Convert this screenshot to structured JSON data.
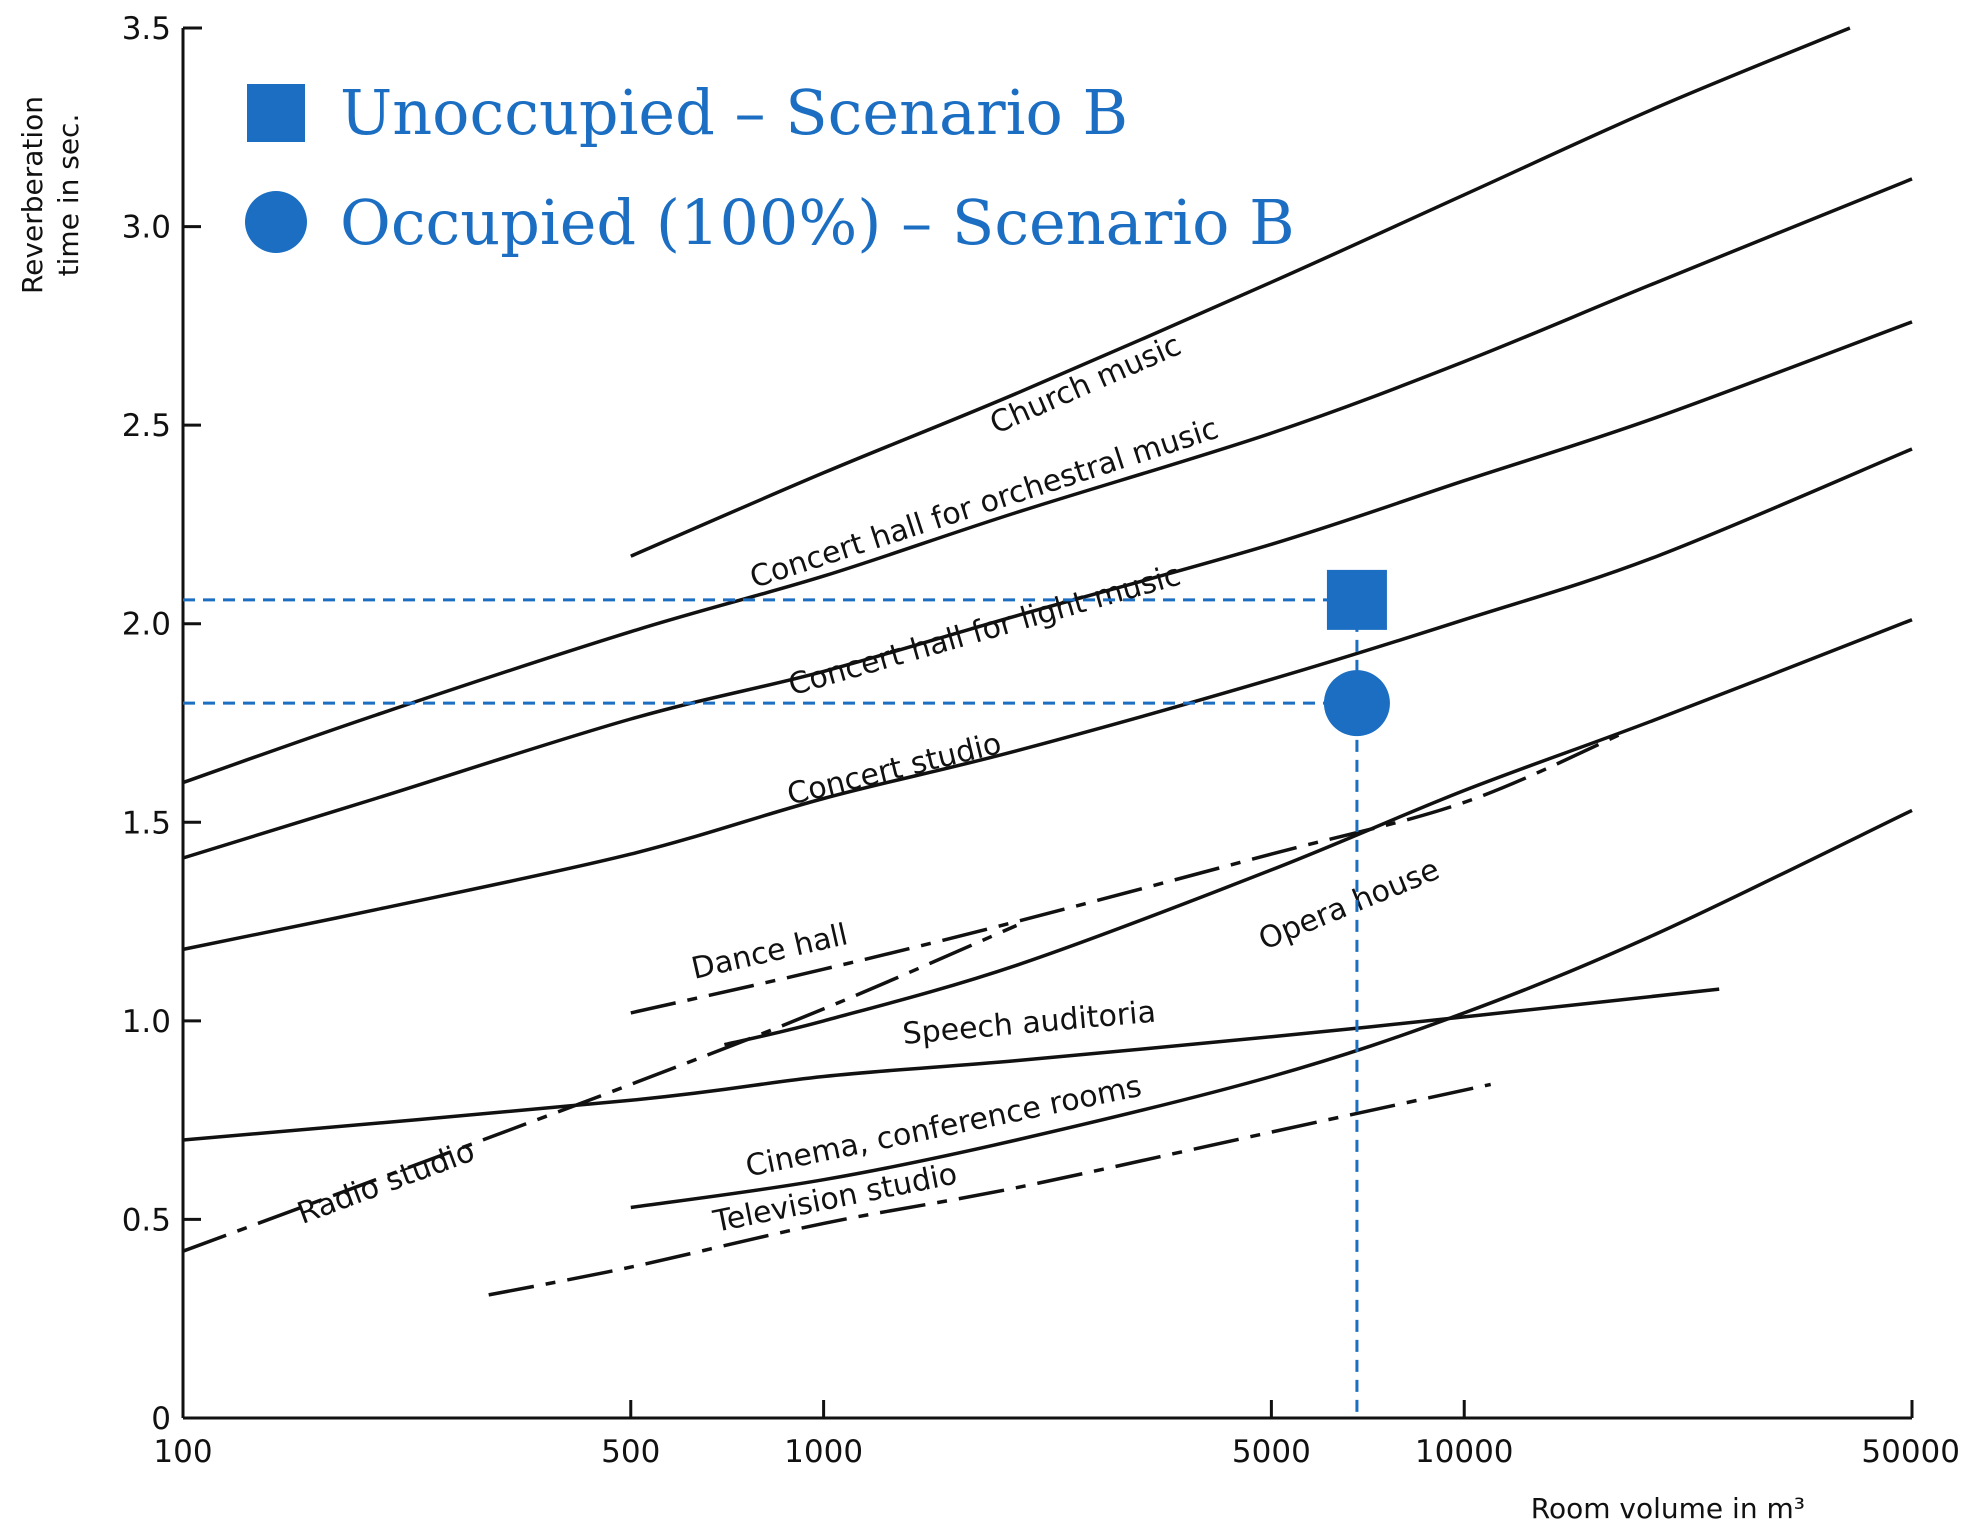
{
  "chart_data": {
    "type": "line",
    "xlabel": "Room volume in m³",
    "ylabel_line1": "Reverberation",
    "ylabel_line2": "time in sec.",
    "x_scale": "log",
    "xlim": [
      100,
      50000
    ],
    "ylim": [
      0,
      3.5
    ],
    "x_ticks": [
      {
        "value": 100,
        "label": "100"
      },
      {
        "value": 500,
        "label": "500"
      },
      {
        "value": 1000,
        "label": "1000"
      },
      {
        "value": 5000,
        "label": "5000"
      },
      {
        "value": 10000,
        "label": "10000"
      },
      {
        "value": 50000,
        "label": "50000"
      }
    ],
    "y_ticks": [
      {
        "value": 0,
        "label": "0"
      },
      {
        "value": 0.5,
        "label": "0.5"
      },
      {
        "value": 1.0,
        "label": "1.0"
      },
      {
        "value": 1.5,
        "label": "1.5"
      },
      {
        "value": 2.0,
        "label": "2.0"
      },
      {
        "value": 2.5,
        "label": "2.5"
      },
      {
        "value": 3.0,
        "label": "3.0"
      },
      {
        "value": 3.5,
        "label": "3.5"
      }
    ],
    "series": [
      {
        "name": "Church music",
        "style": "solid",
        "label_at": [
          2600,
          2.58
        ],
        "x": [
          500,
          1000,
          2000,
          5000,
          10000,
          20000,
          40000
        ],
        "y": [
          2.17,
          2.38,
          2.58,
          2.86,
          3.08,
          3.3,
          3.5
        ]
      },
      {
        "name": "Concert hall for orchestral music",
        "style": "solid",
        "label_at": [
          1800,
          2.28
        ],
        "x": [
          100,
          200,
          500,
          1000,
          2000,
          5000,
          10000,
          20000,
          50000
        ],
        "y": [
          1.6,
          1.77,
          1.98,
          2.12,
          2.28,
          2.48,
          2.66,
          2.86,
          3.12
        ]
      },
      {
        "name": "Concert hall for light music",
        "style": "solid",
        "label_at": [
          1800,
          1.96
        ],
        "x": [
          100,
          200,
          500,
          1000,
          2000,
          5000,
          10000,
          20000,
          50000
        ],
        "y": [
          1.41,
          1.56,
          1.76,
          1.88,
          2.02,
          2.2,
          2.36,
          2.52,
          2.76
        ]
      },
      {
        "name": "Concert studio",
        "style": "solid",
        "label_at": [
          1300,
          1.61
        ],
        "x": [
          100,
          200,
          500,
          1000,
          2000,
          5000,
          10000,
          20000,
          50000
        ],
        "y": [
          1.18,
          1.28,
          1.42,
          1.56,
          1.68,
          1.86,
          2.01,
          2.17,
          2.44
        ]
      },
      {
        "name": "Opera house",
        "style": "solid",
        "label_at": [
          6700,
          1.27
        ],
        "x": [
          700,
          1000,
          2000,
          5000,
          10000,
          20000,
          50000
        ],
        "y": [
          0.94,
          1.0,
          1.14,
          1.38,
          1.58,
          1.76,
          2.01
        ]
      },
      {
        "name": "Dance hall",
        "style": "dashdot",
        "label_at": [
          830,
          1.15
        ],
        "x": [
          500,
          1000,
          2000,
          5000,
          10000,
          18000
        ],
        "y": [
          1.02,
          1.13,
          1.25,
          1.42,
          1.55,
          1.73
        ]
      },
      {
        "name": "Radio studio",
        "style": "dashdot",
        "label_at": [
          210,
          0.57
        ],
        "x": [
          100,
          200,
          500,
          1000,
          2000
        ],
        "y": [
          0.42,
          0.6,
          0.84,
          1.03,
          1.24
        ]
      },
      {
        "name": "Speech auditoria",
        "style": "solid",
        "label_at": [
          2100,
          0.97
        ],
        "x": [
          100,
          500,
          1000,
          2000,
          5000,
          10000,
          25000
        ],
        "y": [
          0.7,
          0.8,
          0.86,
          0.9,
          0.96,
          1.01,
          1.08
        ]
      },
      {
        "name": "Cinema, conference rooms",
        "style": "solid",
        "label_at": [
          1550,
          0.71
        ],
        "x": [
          500,
          1000,
          2000,
          5000,
          10000,
          20000,
          50000
        ],
        "y": [
          0.53,
          0.6,
          0.7,
          0.86,
          1.02,
          1.22,
          1.53
        ]
      },
      {
        "name": "Television studio",
        "style": "dashdot",
        "label_at": [
          1050,
          0.53
        ],
        "x": [
          300,
          500,
          1000,
          2000,
          5000,
          11000
        ],
        "y": [
          0.31,
          0.38,
          0.49,
          0.58,
          0.72,
          0.84
        ]
      }
    ],
    "points": [
      {
        "name": "Unoccupied – Scenario B",
        "marker": "square",
        "x": 6800,
        "y": 2.06
      },
      {
        "name": "Occupied (100%) – Scenario B",
        "marker": "circle",
        "x": 6800,
        "y": 1.8
      }
    ],
    "legend_position": "top-left",
    "marker_color": "#1b6ec2"
  }
}
